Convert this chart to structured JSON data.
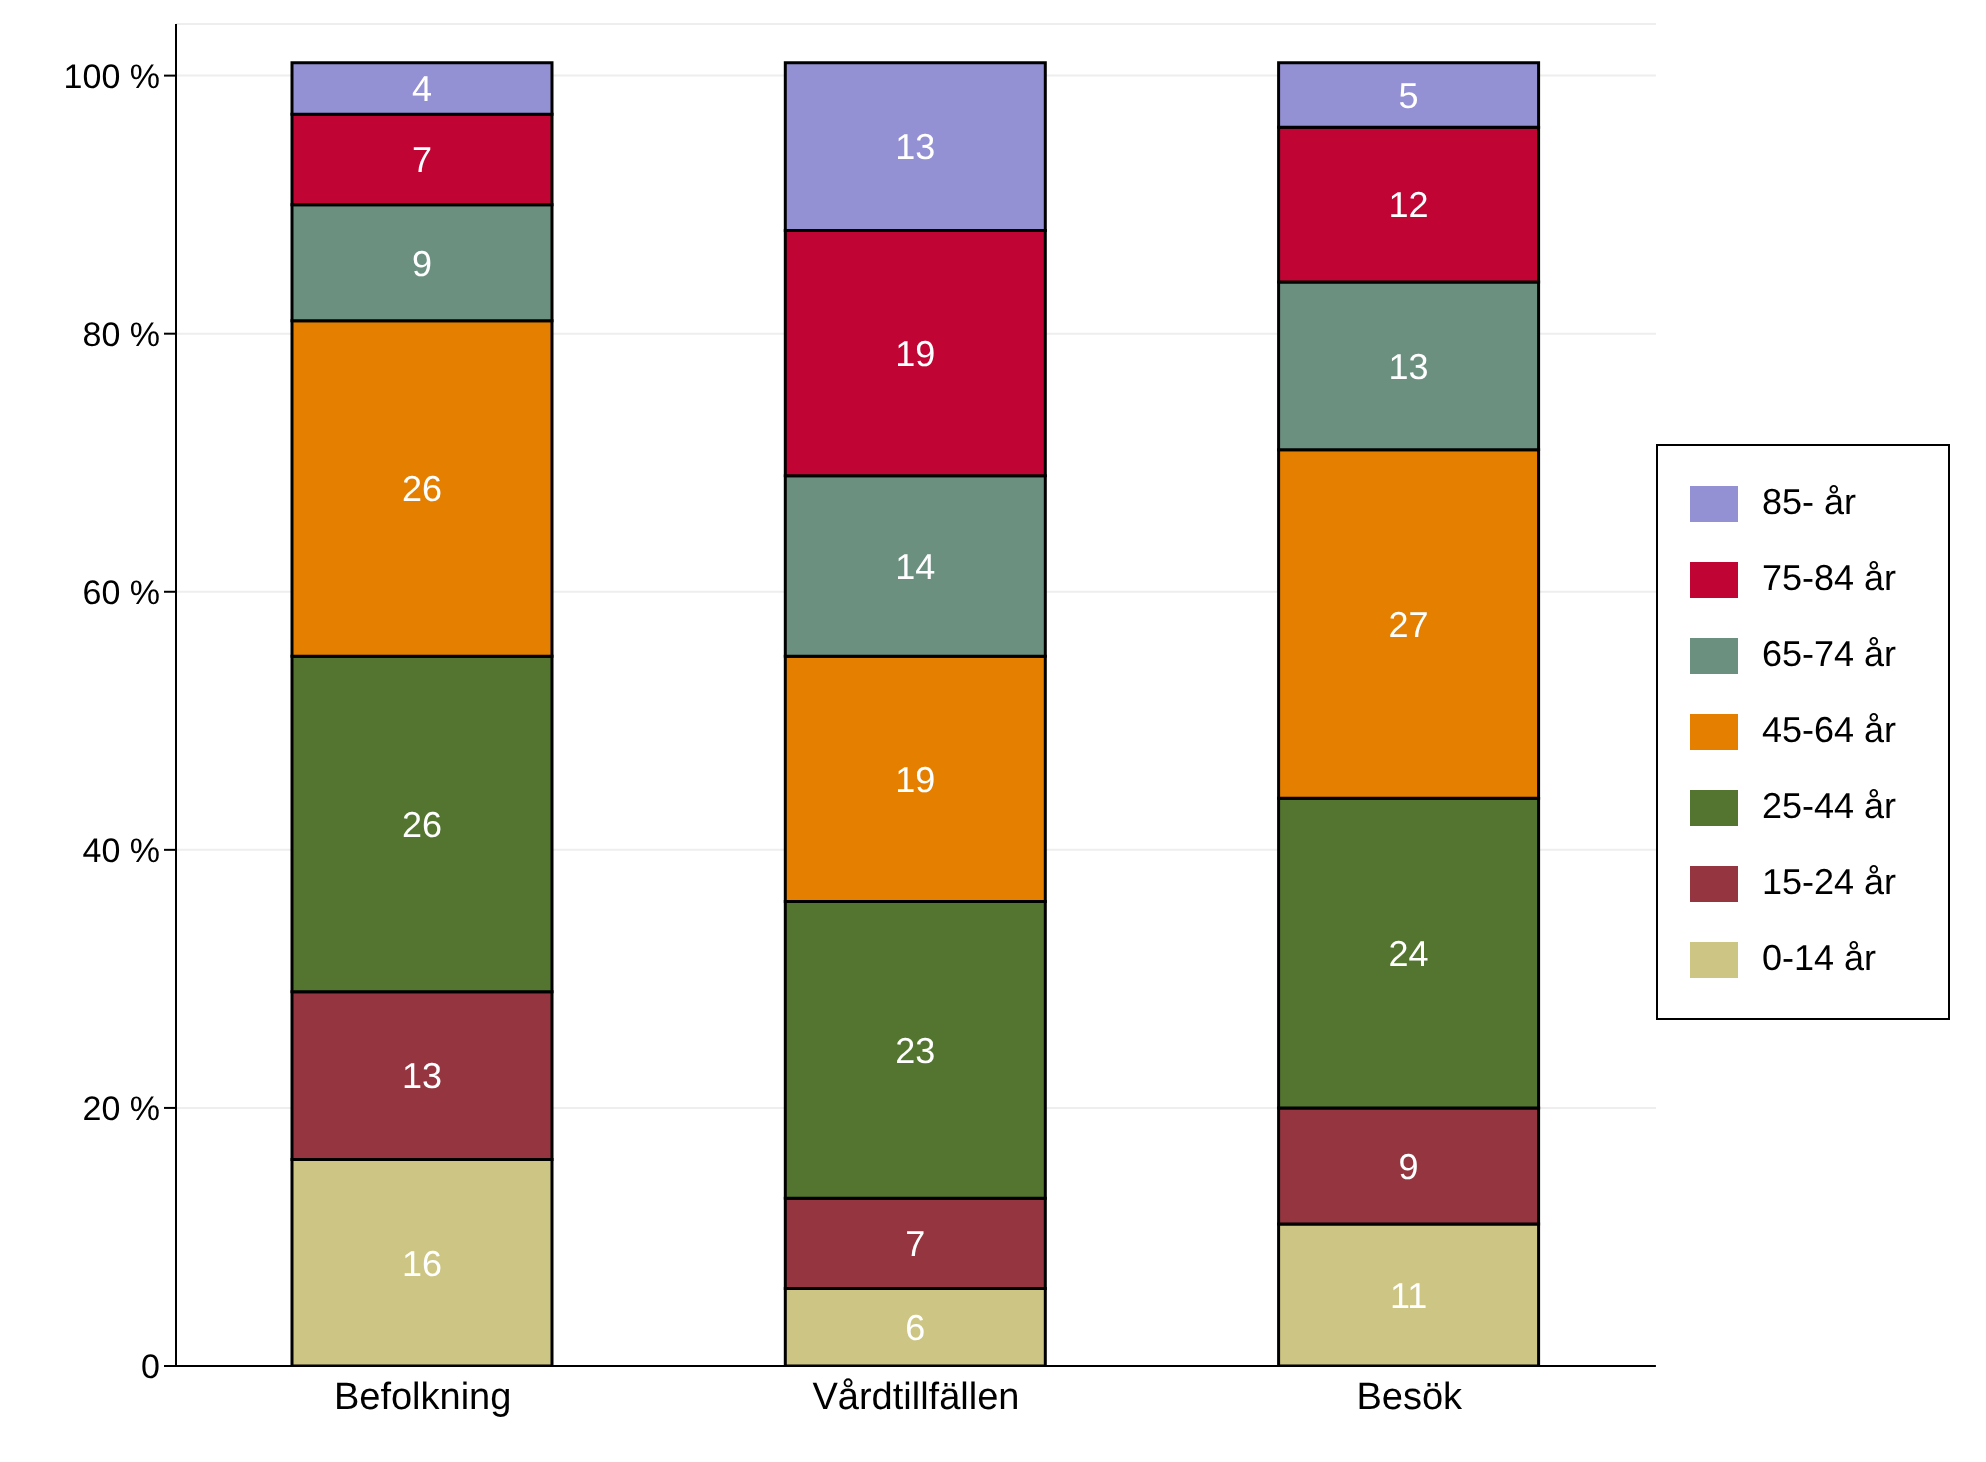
{
  "chart_data": {
    "type": "bar",
    "stacked": true,
    "categories": [
      "Befolkning",
      "Vårdtillfällen",
      "Besök"
    ],
    "series": [
      {
        "name": "0-14 år",
        "color": "#cdc583",
        "values": [
          16,
          6,
          11
        ]
      },
      {
        "name": "15-24 år",
        "color": "#953540",
        "values": [
          13,
          7,
          9
        ]
      },
      {
        "name": "25-44 år",
        "color": "#53752f",
        "values": [
          26,
          23,
          24
        ]
      },
      {
        "name": "45-64 år",
        "color": "#e57f00",
        "values": [
          26,
          19,
          27
        ]
      },
      {
        "name": "65-74 år",
        "color": "#6b9080",
        "values": [
          9,
          14,
          13
        ]
      },
      {
        "name": "75-84 år",
        "color": "#c00535",
        "values": [
          7,
          19,
          12
        ]
      },
      {
        "name": "85- år",
        "color": "#9490d4",
        "values": [
          4,
          13,
          5
        ]
      }
    ],
    "ylim": [
      0,
      104
    ],
    "yticks": [
      {
        "value": 0,
        "label": "0"
      },
      {
        "value": 20,
        "label": "20 %"
      },
      {
        "value": 40,
        "label": "40 %"
      },
      {
        "value": 60,
        "label": "60 %"
      },
      {
        "value": 80,
        "label": "80 %"
      },
      {
        "value": 100,
        "label": "100 %"
      }
    ],
    "grid": "y",
    "legend": "right",
    "data_labels": true
  }
}
